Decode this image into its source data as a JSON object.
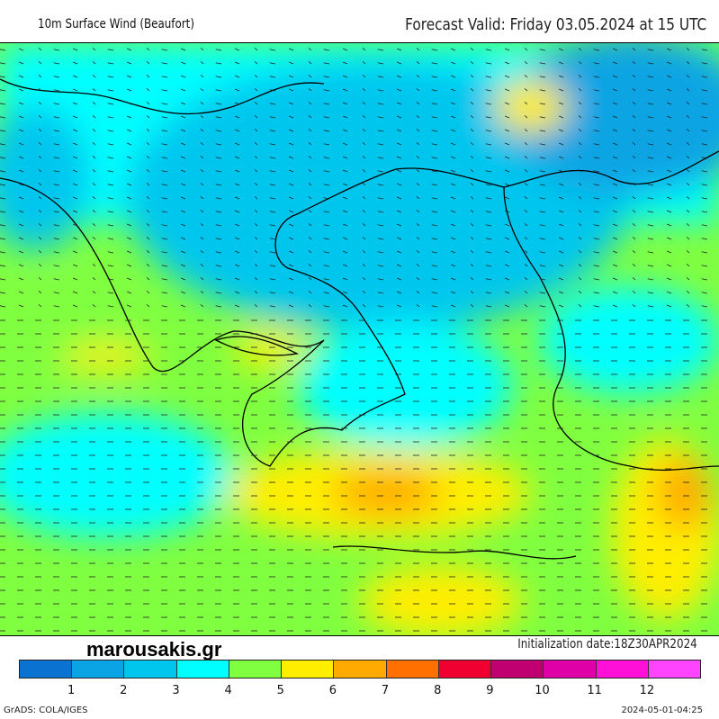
{
  "header": {
    "title": "10m Surface Wind (Beaufort)",
    "forecast": "Forecast Valid:  Friday 03.05.2024 at 15 UTC"
  },
  "brand": "marousakis.gr",
  "initialization": "Initialization  date:18Z30APR2024",
  "colorbar": {
    "colors": [
      "#0a72d0",
      "#0aa4e4",
      "#00c6ee",
      "#00ffff",
      "#80ff40",
      "#ffee00",
      "#ffaa00",
      "#ff7000",
      "#f00030",
      "#c00070",
      "#e000a8",
      "#ff10d8",
      "#ff44ff"
    ],
    "ticks": [
      "1",
      "2",
      "3",
      "4",
      "5",
      "6",
      "7",
      "8",
      "9",
      "10",
      "11",
      "12"
    ]
  },
  "footer": {
    "software": "GrADS: COLA/IGES",
    "generated": "2024-05-01-04:25"
  }
}
